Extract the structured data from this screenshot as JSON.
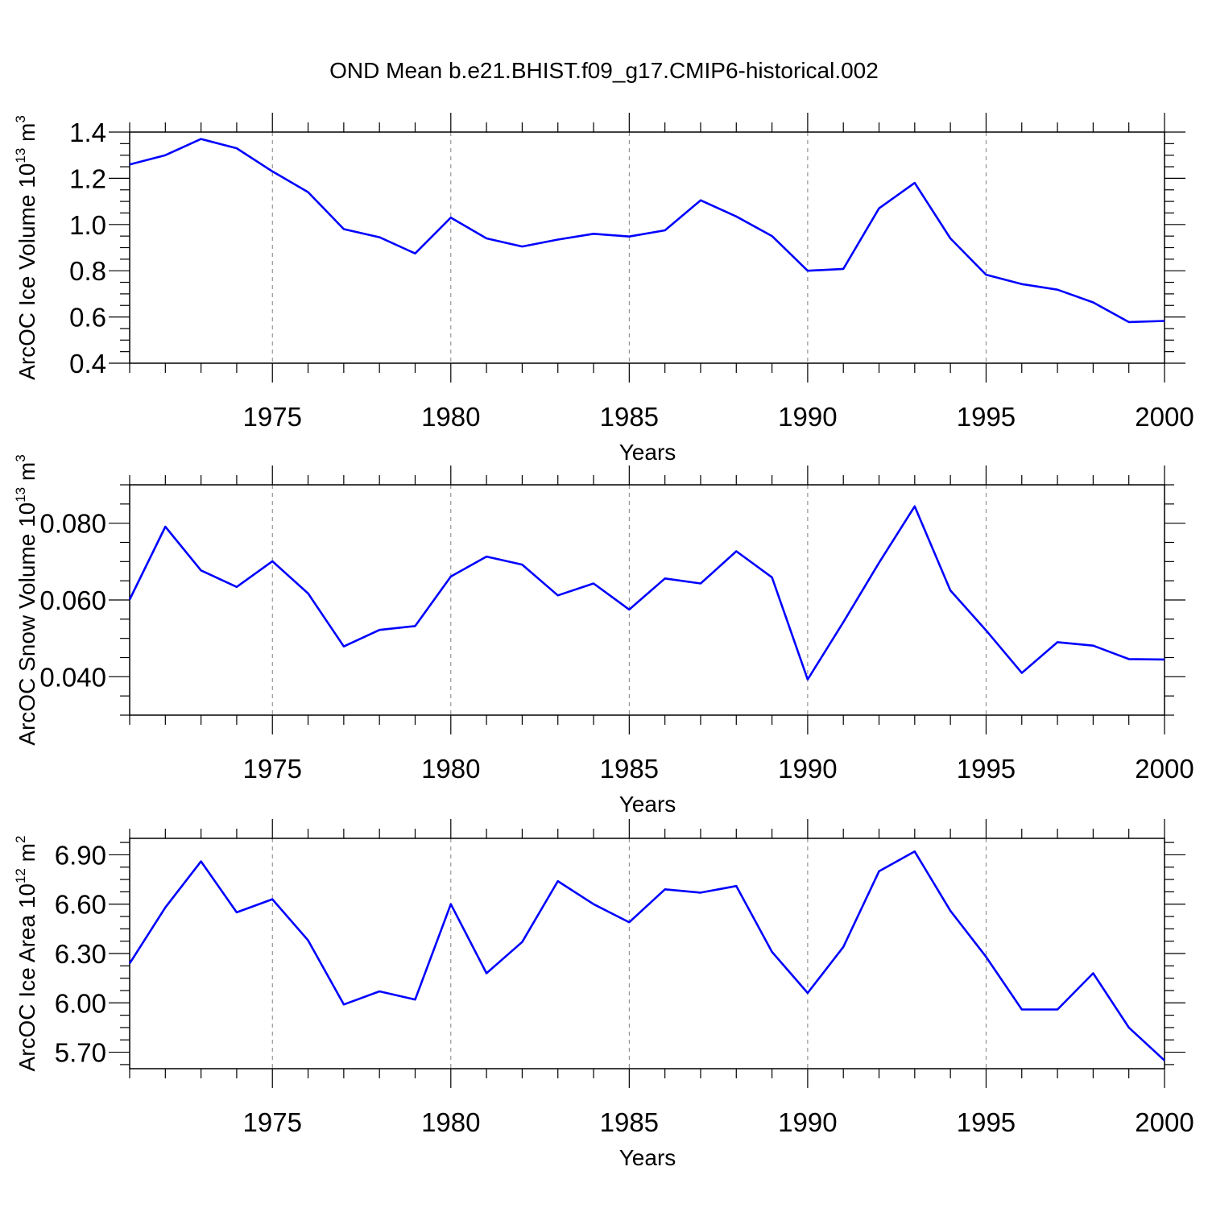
{
  "title": "OND Mean b.e21.BHIST.f09_g17.CMIP6-historical.002",
  "colors": {
    "series": "#0000ff",
    "axis": "#000000",
    "grid": "#808080",
    "background": "#ffffff"
  },
  "chart_data": [
    {
      "type": "line",
      "xlabel": "Years",
      "ylabel": {
        "text": "ArcOC Ice Volume 10",
        "exp1": "13",
        "unit": " m",
        "exp2": "3"
      },
      "ylim": [
        0.4,
        1.4
      ],
      "yticks": [
        0.4,
        0.6,
        0.8,
        1.0,
        1.2,
        1.4
      ],
      "ytick_labels": [
        "0.4",
        "0.6",
        "0.8",
        "1.0",
        "1.2",
        "1.4"
      ],
      "xlim": [
        1971,
        2000
      ],
      "xticks": [
        1975,
        1980,
        1985,
        1990,
        1995,
        2000
      ],
      "xtick_labels": [
        "1975",
        "1980",
        "1985",
        "1990",
        "1995",
        "2000"
      ],
      "grid": "dashed vertical at major x ticks",
      "x": [
        1971,
        1972,
        1973,
        1974,
        1975,
        1976,
        1977,
        1978,
        1979,
        1980,
        1981,
        1982,
        1983,
        1984,
        1985,
        1986,
        1987,
        1988,
        1989,
        1990,
        1991,
        1992,
        1993,
        1994,
        1995,
        1996,
        1997,
        1998,
        1999,
        2000
      ],
      "values": [
        1.26,
        1.3,
        1.37,
        1.33,
        1.23,
        1.14,
        0.98,
        0.945,
        0.875,
        1.03,
        0.94,
        0.905,
        0.935,
        0.96,
        0.948,
        0.975,
        1.105,
        1.035,
        0.95,
        0.8,
        0.808,
        1.07,
        1.18,
        0.94,
        0.783,
        0.742,
        0.718,
        0.663,
        0.578,
        0.583
      ]
    },
    {
      "type": "line",
      "xlabel": "Years",
      "ylabel": {
        "text": "ArcOC Snow Volume 10",
        "exp1": "13",
        "unit": " m",
        "exp2": "3"
      },
      "ylim": [
        0.03,
        0.09
      ],
      "yticks": [
        0.04,
        0.06,
        0.08
      ],
      "ytick_labels": [
        "0.040",
        "0.060",
        "0.080"
      ],
      "xlim": [
        1971,
        2000
      ],
      "xticks": [
        1975,
        1980,
        1985,
        1990,
        1995,
        2000
      ],
      "xtick_labels": [
        "1975",
        "1980",
        "1985",
        "1990",
        "1995",
        "2000"
      ],
      "grid": "dashed vertical at major x ticks",
      "x": [
        1971,
        1972,
        1973,
        1974,
        1975,
        1976,
        1977,
        1978,
        1979,
        1980,
        1981,
        1982,
        1983,
        1984,
        1985,
        1986,
        1987,
        1988,
        1989,
        1990,
        1991,
        1992,
        1993,
        1994,
        1995,
        1996,
        1997,
        1998,
        1999,
        2000
      ],
      "values": [
        0.0601,
        0.0791,
        0.0677,
        0.0634,
        0.0701,
        0.0617,
        0.0479,
        0.0522,
        0.0532,
        0.0661,
        0.0713,
        0.0692,
        0.0612,
        0.0643,
        0.0575,
        0.0656,
        0.0643,
        0.0727,
        0.0659,
        0.0393,
        0.0542,
        0.0697,
        0.0844,
        0.0625,
        0.0521,
        0.041,
        0.049,
        0.0481,
        0.0446,
        0.0445
      ]
    },
    {
      "type": "line",
      "xlabel": "Years",
      "ylabel": {
        "text": "ArcOC Ice Area 10",
        "exp1": "12",
        "unit": " m",
        "exp2": "2"
      },
      "ylim": [
        5.6,
        7.0
      ],
      "yticks": [
        5.7,
        6.0,
        6.3,
        6.6,
        6.9
      ],
      "ytick_labels": [
        "5.70",
        "6.00",
        "6.30",
        "6.60",
        "6.90"
      ],
      "xlim": [
        1971,
        2000
      ],
      "xticks": [
        1975,
        1980,
        1985,
        1990,
        1995,
        2000
      ],
      "xtick_labels": [
        "1975",
        "1980",
        "1985",
        "1990",
        "1995",
        "2000"
      ],
      "grid": "dashed vertical at major x ticks",
      "x": [
        1971,
        1972,
        1973,
        1974,
        1975,
        1976,
        1977,
        1978,
        1979,
        1980,
        1981,
        1982,
        1983,
        1984,
        1985,
        1986,
        1987,
        1988,
        1989,
        1990,
        1991,
        1992,
        1993,
        1994,
        1995,
        1996,
        1997,
        1998,
        1999,
        2000
      ],
      "values": [
        6.24,
        6.58,
        6.86,
        6.55,
        6.63,
        6.38,
        5.99,
        6.07,
        6.02,
        6.6,
        6.18,
        6.37,
        6.74,
        6.6,
        6.49,
        6.69,
        6.67,
        6.71,
        6.31,
        6.06,
        6.34,
        6.8,
        6.92,
        6.56,
        6.28,
        5.96,
        5.96,
        6.18,
        5.85,
        5.65
      ]
    }
  ]
}
